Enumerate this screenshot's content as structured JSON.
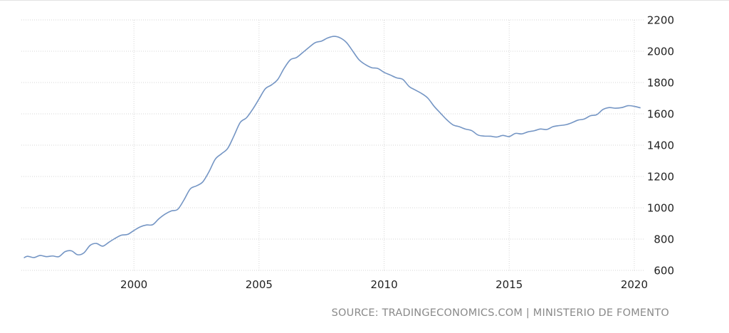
{
  "source": "SOURCE: TRADINGECONOMICS.COM | MINISTERIO DE FOMENTO",
  "colors": {
    "line": "#7495c4",
    "grid": "#d6d6d6",
    "text": "#222222",
    "source": "#8a8a8a"
  },
  "chart_data": {
    "type": "line",
    "title": "",
    "xlabel": "",
    "ylabel": "",
    "xlim": [
      1995.5,
      2020.4
    ],
    "ylim": [
      600,
      2200
    ],
    "x_ticks": [
      2000,
      2005,
      2010,
      2015,
      2020
    ],
    "x_tick_labels": [
      "2000",
      "2005",
      "2010",
      "2015",
      "2020"
    ],
    "y_ticks": [
      600,
      800,
      1000,
      1200,
      1400,
      1600,
      1800,
      2000,
      2200
    ],
    "y_tick_labels": [
      "600",
      "800",
      "1000",
      "1200",
      "1400",
      "1600",
      "1800",
      "2000",
      "2200"
    ],
    "grid": "dotted",
    "series": [
      {
        "x": [
          1995.6,
          1995.75,
          1996.0,
          1996.25,
          1996.5,
          1996.75,
          1997.0,
          1997.25,
          1997.5,
          1997.75,
          1998.0,
          1998.25,
          1998.5,
          1998.75,
          1999.0,
          1999.25,
          1999.5,
          1999.75,
          2000.0,
          2000.25,
          2000.5,
          2000.75,
          2001.0,
          2001.25,
          2001.5,
          2001.75,
          2002.0,
          2002.25,
          2002.5,
          2002.75,
          2003.0,
          2003.25,
          2003.5,
          2003.75,
          2004.0,
          2004.25,
          2004.5,
          2004.75,
          2005.0,
          2005.25,
          2005.5,
          2005.75,
          2006.0,
          2006.25,
          2006.5,
          2006.75,
          2007.0,
          2007.25,
          2007.5,
          2007.75,
          2008.0,
          2008.25,
          2008.5,
          2008.75,
          2009.0,
          2009.25,
          2009.5,
          2009.75,
          2010.0,
          2010.25,
          2010.5,
          2010.75,
          2011.0,
          2011.25,
          2011.5,
          2011.75,
          2012.0,
          2012.25,
          2012.5,
          2012.75,
          2013.0,
          2013.25,
          2013.5,
          2013.75,
          2014.0,
          2014.25,
          2014.5,
          2014.75,
          2015.0,
          2015.25,
          2015.5,
          2015.75,
          2016.0,
          2016.25,
          2016.5,
          2016.75,
          2017.0,
          2017.25,
          2017.5,
          2017.75,
          2018.0,
          2018.25,
          2018.5,
          2018.75,
          2019.0,
          2019.25,
          2019.5,
          2019.75,
          2020.0,
          2020.25
        ],
        "values": [
          680,
          690,
          682,
          695,
          688,
          692,
          688,
          720,
          725,
          700,
          712,
          760,
          772,
          755,
          780,
          805,
          825,
          830,
          855,
          878,
          890,
          892,
          930,
          960,
          980,
          990,
          1050,
          1120,
          1140,
          1165,
          1230,
          1310,
          1345,
          1380,
          1460,
          1545,
          1575,
          1630,
          1695,
          1760,
          1785,
          1820,
          1890,
          1945,
          1960,
          1992,
          2025,
          2055,
          2065,
          2085,
          2095,
          2085,
          2055,
          2000,
          1945,
          1915,
          1895,
          1890,
          1865,
          1848,
          1830,
          1820,
          1775,
          1752,
          1730,
          1700,
          1648,
          1605,
          1563,
          1530,
          1518,
          1503,
          1493,
          1465,
          1458,
          1457,
          1452,
          1462,
          1455,
          1475,
          1472,
          1485,
          1492,
          1503,
          1500,
          1518,
          1525,
          1530,
          1543,
          1560,
          1567,
          1588,
          1595,
          1628,
          1640,
          1636,
          1640,
          1652,
          1648,
          1638
        ]
      }
    ]
  }
}
